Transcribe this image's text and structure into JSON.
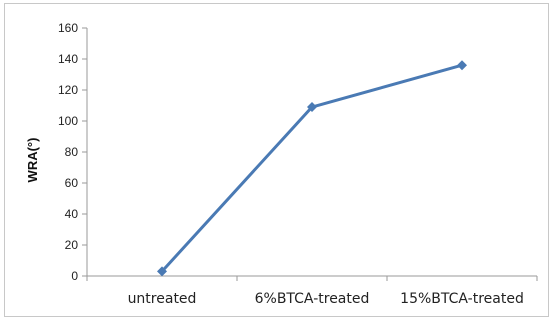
{
  "chart_data": {
    "type": "line",
    "title": "",
    "xlabel": "",
    "ylabel": "WRA(°)",
    "categories": [
      "untreated",
      "6%BTCA-treated",
      "15%BTCA-treated"
    ],
    "series": [
      {
        "name": "",
        "values": [
          3,
          109,
          136
        ],
        "color": "#4a7ab4"
      }
    ],
    "ylim": [
      0,
      160
    ],
    "yticks": [
      0,
      20,
      40,
      60,
      80,
      100,
      120,
      140,
      160
    ],
    "grid": false,
    "legend": "none",
    "colors": {
      "axis": "#9a9a9a",
      "marker": "#4a7ab4"
    }
  }
}
